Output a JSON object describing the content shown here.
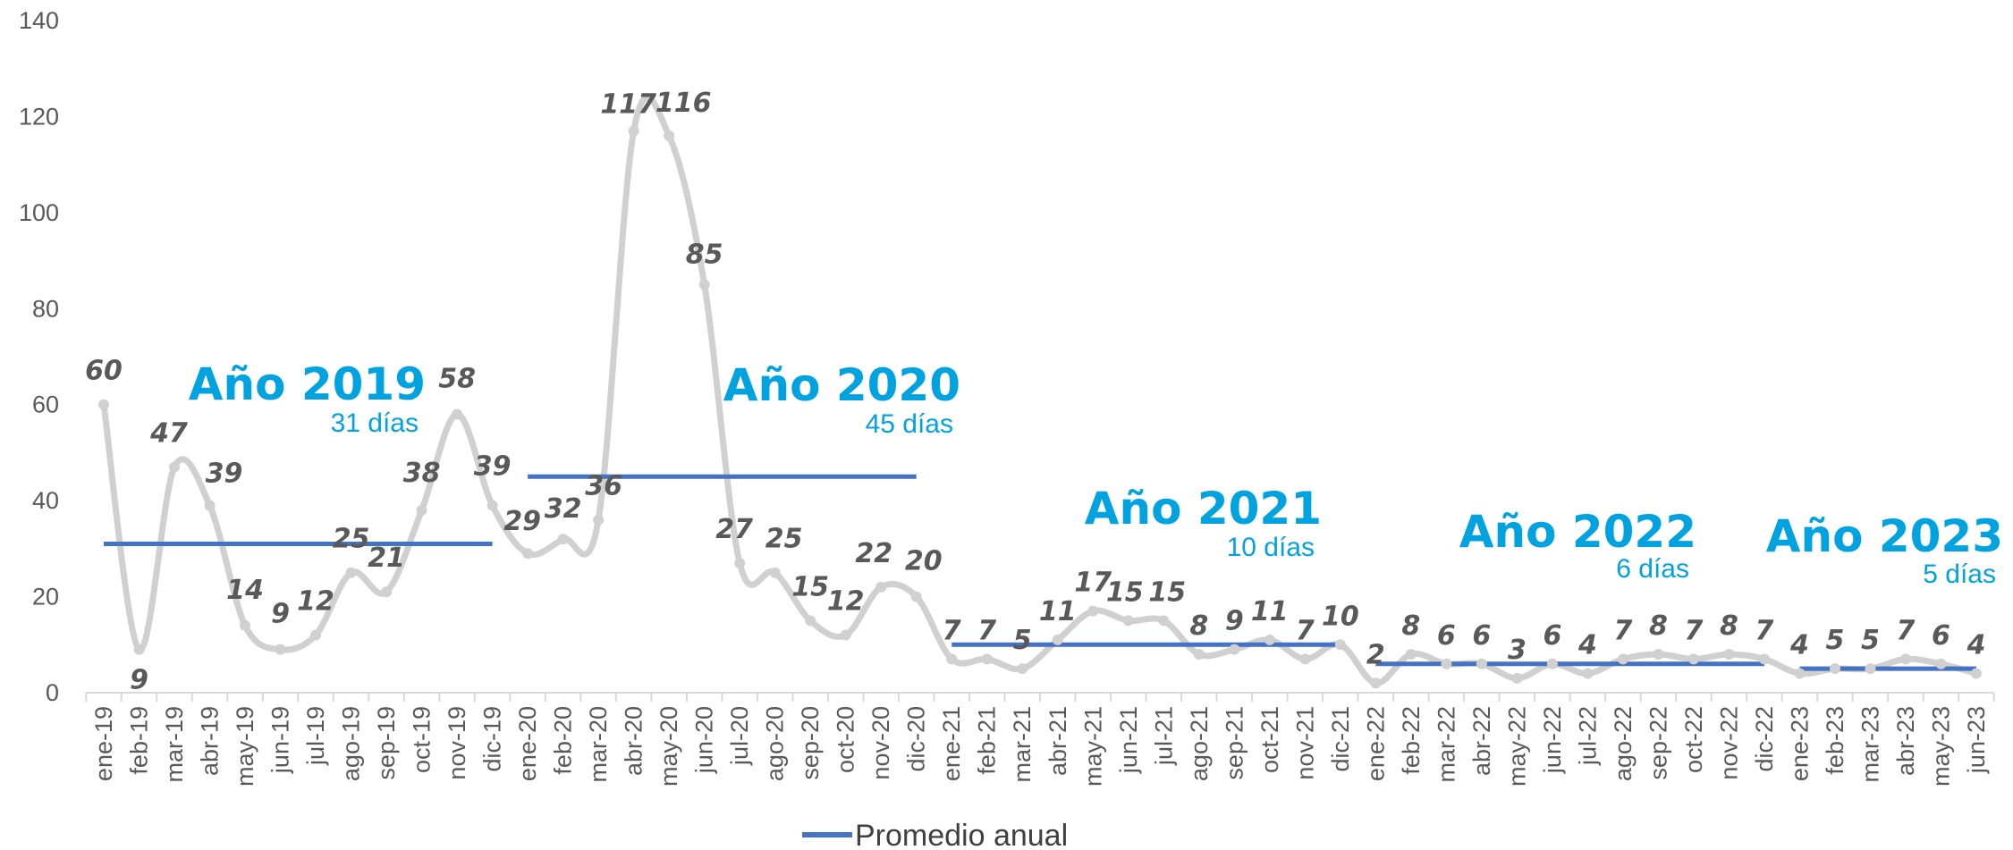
{
  "chart_data": {
    "type": "line",
    "categories": [
      "ene-19",
      "feb-19",
      "mar-19",
      "abr-19",
      "may-19",
      "jun-19",
      "jul-19",
      "ago-19",
      "sep-19",
      "oct-19",
      "nov-19",
      "dic-19",
      "ene-20",
      "feb-20",
      "mar-20",
      "abr-20",
      "may-20",
      "jun-20",
      "jul-20",
      "ago-20",
      "sep-20",
      "oct-20",
      "nov-20",
      "dic-20",
      "ene-21",
      "feb-21",
      "mar-21",
      "abr-21",
      "may-21",
      "jun-21",
      "jul-21",
      "ago-21",
      "sep-21",
      "oct-21",
      "nov-21",
      "dic-21",
      "ene-22",
      "feb-22",
      "mar-22",
      "abr-22",
      "may-22",
      "jun-22",
      "jul-22",
      "ago-22",
      "sep-22",
      "oct-22",
      "nov-22",
      "dic-22",
      "ene-23",
      "feb-23",
      "mar-23",
      "abr-23",
      "may-23",
      "jun-23"
    ],
    "series": [
      {
        "values": [
          60,
          9,
          47,
          39,
          14,
          9,
          12,
          25,
          21,
          38,
          58,
          39,
          29,
          32,
          36,
          117,
          116,
          85,
          27,
          25,
          15,
          12,
          22,
          20,
          7,
          7,
          5,
          11,
          17,
          15,
          15,
          8,
          9,
          11,
          7,
          10,
          2,
          8,
          6,
          6,
          3,
          6,
          4,
          7,
          8,
          7,
          8,
          7,
          4,
          5,
          5,
          7,
          6,
          4
        ],
        "color": "#d0d0d0"
      },
      {
        "name": "Promedio anual",
        "type": "step",
        "color": "#4472c4",
        "segments": [
          {
            "from": "ene-19",
            "to": "dic-19",
            "value": 31
          },
          {
            "from": "ene-20",
            "to": "dic-20",
            "value": 45
          },
          {
            "from": "ene-21",
            "to": "dic-21",
            "value": 10
          },
          {
            "from": "ene-22",
            "to": "dic-22",
            "value": 6
          },
          {
            "from": "ene-23",
            "to": "jun-23",
            "value": 5
          }
        ]
      }
    ],
    "yticks": [
      "0",
      "20",
      "40",
      "60",
      "80",
      "100",
      "120",
      "140"
    ],
    "ylim": [
      0,
      140
    ],
    "grid": false,
    "legend_position": "bottom-center",
    "annotations": [
      {
        "title": "Año 2019",
        "subtitle": "31 días"
      },
      {
        "title": "Año 2020",
        "subtitle": "45 días"
      },
      {
        "title": "Año 2021",
        "subtitle": "10 días"
      },
      {
        "title": "Año 2022",
        "subtitle": "6 días"
      },
      {
        "title": "Año 2023",
        "subtitle": "5 días"
      }
    ],
    "annotation_color": "#00a3e0"
  }
}
